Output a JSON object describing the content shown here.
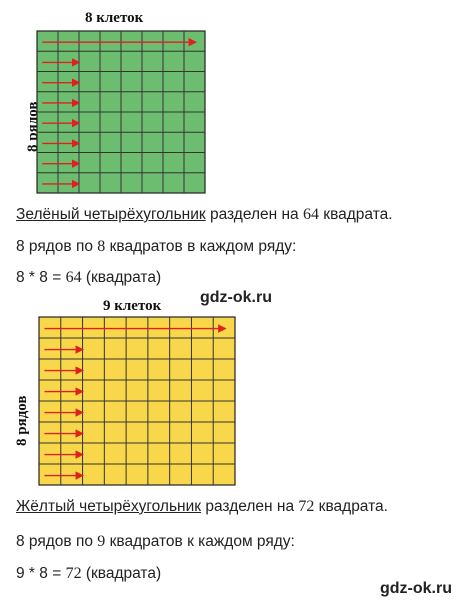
{
  "green": {
    "title": "8 клеток",
    "side": "8 рядов",
    "cols": 8,
    "rows": 8,
    "fill": "#6dbd70",
    "line1_part1": "Зелёный четырёхугольник",
    "line1_part2": " разделен на ",
    "line1_num": "64",
    "line1_part3": " квадрата.",
    "line2_part1": "8 рядов по ",
    "line2_num": "8",
    "line2_part2": " квадратов в каждом ряду:",
    "line3_part1": "8 * 8 = ",
    "line3_num": "64",
    "line3_part2": " (квадрата)"
  },
  "yellow": {
    "title": "9 клеток",
    "side": "8 рядов",
    "cols": 9,
    "rows": 8,
    "fill": "#f9d74a",
    "line1_part1": "Жёлтый четырёхугольник",
    "line1_part2": " разделен на ",
    "line1_num": "72",
    "line1_part3": " квадрата.",
    "line2_part1": "8 рядов по ",
    "line2_num": "9",
    "line2_part2": " квадратов к каждом ряду:",
    "line3_part1": "9 * 8 = ",
    "line3_num": "72",
    "line3_part2": " (квадрата)"
  },
  "arrow_color": "#e02020",
  "watermark": "gdz-ok.ru"
}
